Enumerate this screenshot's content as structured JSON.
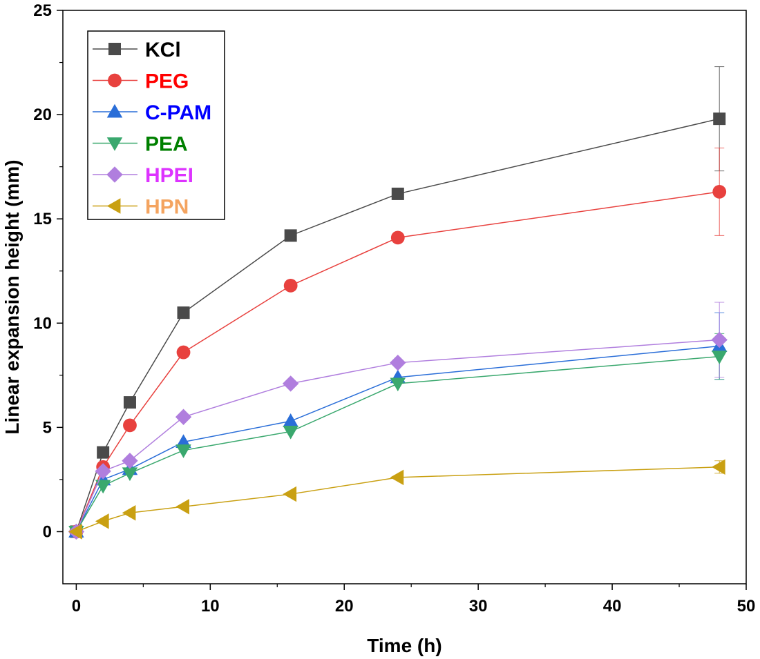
{
  "chart_data": {
    "type": "line",
    "title": "",
    "xlabel": "Time (h)",
    "ylabel": "Linear expansion height (mm)",
    "xlim": [
      -1,
      50
    ],
    "ylim": [
      -2.5,
      25
    ],
    "xticks": [
      0,
      10,
      20,
      30,
      40,
      50
    ],
    "yticks": [
      0,
      5,
      10,
      15,
      20,
      25
    ],
    "x": [
      0,
      2,
      4,
      8,
      16,
      24,
      48
    ],
    "grid": false,
    "legend_position": "top-left",
    "series": [
      {
        "name": "KCl",
        "marker": "square",
        "color": "#4a4a4a",
        "label_color": "#000000",
        "values": [
          0,
          3.8,
          6.2,
          10.5,
          14.2,
          16.2,
          19.8
        ],
        "error": [
          0,
          0,
          0,
          0,
          0,
          0,
          2.5
        ]
      },
      {
        "name": "PEG",
        "marker": "circle",
        "color": "#e8413e",
        "label_color": "#ff0000",
        "values": [
          0,
          3.1,
          5.1,
          8.6,
          11.8,
          14.1,
          16.3
        ],
        "error": [
          0,
          0,
          0,
          0,
          0,
          0,
          2.1
        ]
      },
      {
        "name": "C-PAM",
        "marker": "triangle-up",
        "color": "#2a6ed8",
        "label_color": "#0000ff",
        "values": [
          0,
          2.5,
          3.0,
          4.3,
          5.3,
          7.4,
          8.9
        ],
        "error": [
          0,
          0,
          0,
          0,
          0,
          0,
          1.6
        ]
      },
      {
        "name": "PEA",
        "marker": "triangle-down",
        "color": "#3aa86e",
        "label_color": "#008000",
        "values": [
          0,
          2.2,
          2.8,
          3.9,
          4.8,
          7.1,
          8.4
        ],
        "error": [
          0,
          0,
          0,
          0,
          0,
          0,
          1.1
        ]
      },
      {
        "name": "HPEI",
        "marker": "diamond",
        "color": "#b07ede",
        "label_color": "#dd33ff",
        "values": [
          0,
          2.9,
          3.4,
          5.5,
          7.1,
          8.1,
          9.2
        ],
        "error": [
          0,
          0,
          0,
          0,
          0,
          0,
          1.8
        ]
      },
      {
        "name": "HPN",
        "marker": "triangle-left",
        "color": "#c9a012",
        "label_color": "#f4a460",
        "values": [
          0,
          0.5,
          0.9,
          1.2,
          1.8,
          2.6,
          3.1
        ],
        "error": [
          0,
          0,
          0,
          0,
          0,
          0,
          0.3
        ]
      }
    ]
  }
}
